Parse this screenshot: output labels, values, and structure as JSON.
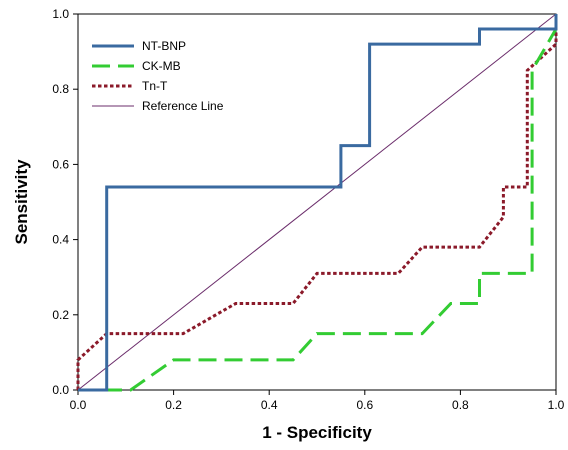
{
  "chart_data": {
    "type": "line",
    "title": "",
    "xlabel": "1 - Specificity",
    "ylabel": "Sensitivity",
    "xlim": [
      0,
      1
    ],
    "ylim": [
      0,
      1
    ],
    "x_ticks": [
      "0.0",
      "0.2",
      "0.4",
      "0.6",
      "0.8",
      "1.0"
    ],
    "y_ticks": [
      "0.0",
      "0.2",
      "0.4",
      "0.6",
      "0.8",
      "1.0"
    ],
    "grid": false,
    "legend_position": "top-left",
    "series": [
      {
        "name": "NT-BNP",
        "color": "#3a6aa0",
        "style": "solid",
        "points": [
          [
            0,
            0
          ],
          [
            0.06,
            0
          ],
          [
            0.06,
            0.54
          ],
          [
            0.55,
            0.54
          ],
          [
            0.55,
            0.65
          ],
          [
            0.61,
            0.65
          ],
          [
            0.61,
            0.92
          ],
          [
            0.84,
            0.92
          ],
          [
            0.84,
            0.96
          ],
          [
            1.0,
            0.96
          ],
          [
            1.0,
            1.0
          ]
        ]
      },
      {
        "name": "CK-MB",
        "color": "#33cc33",
        "style": "dashed",
        "points": [
          [
            0,
            0
          ],
          [
            0.11,
            0
          ],
          [
            0.2,
            0.08
          ],
          [
            0.45,
            0.08
          ],
          [
            0.5,
            0.15
          ],
          [
            0.72,
            0.15
          ],
          [
            0.78,
            0.23
          ],
          [
            0.84,
            0.23
          ],
          [
            0.84,
            0.31
          ],
          [
            0.95,
            0.31
          ],
          [
            0.95,
            0.85
          ],
          [
            1.0,
            0.96
          ],
          [
            1.0,
            1.0
          ]
        ]
      },
      {
        "name": "Tn-T",
        "color": "#8b1a2a",
        "style": "dotted",
        "points": [
          [
            0,
            0
          ],
          [
            0,
            0.08
          ],
          [
            0.06,
            0.15
          ],
          [
            0.22,
            0.15
          ],
          [
            0.33,
            0.23
          ],
          [
            0.45,
            0.23
          ],
          [
            0.5,
            0.31
          ],
          [
            0.67,
            0.31
          ],
          [
            0.72,
            0.38
          ],
          [
            0.84,
            0.38
          ],
          [
            0.89,
            0.46
          ],
          [
            0.89,
            0.54
          ],
          [
            0.94,
            0.54
          ],
          [
            0.94,
            0.85
          ],
          [
            1.0,
            0.92
          ],
          [
            1.0,
            1.0
          ]
        ]
      },
      {
        "name": "Reference Line",
        "color": "#6b2d6b",
        "style": "thin",
        "points": [
          [
            0,
            0
          ],
          [
            1,
            1
          ]
        ]
      }
    ]
  }
}
